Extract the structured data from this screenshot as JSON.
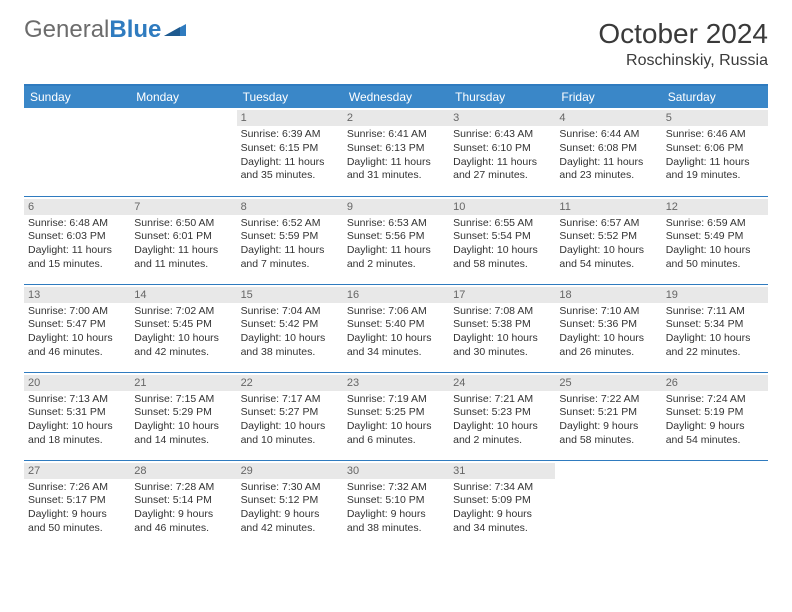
{
  "brand": {
    "part1": "General",
    "part2": "Blue"
  },
  "title": "October 2024",
  "subtitle": "Roschinskiy, Russia",
  "colors": {
    "header_bg": "#3a87c8",
    "rule": "#2f7bbf",
    "dayband": "#e8e8e8",
    "text": "#333333",
    "logo_gray": "#6c6c6c",
    "logo_blue": "#2f7bbf"
  },
  "typography": {
    "title_fontsize": 28,
    "subtitle_fontsize": 16,
    "dow_fontsize": 12,
    "cell_fontsize": 10.5,
    "daynum_fontsize": 11
  },
  "dow": [
    "Sunday",
    "Monday",
    "Tuesday",
    "Wednesday",
    "Thursday",
    "Friday",
    "Saturday"
  ],
  "weeks": [
    [
      null,
      null,
      {
        "d": "1",
        "sr": "6:39 AM",
        "ss": "6:15 PM",
        "dl": "11 hours and 35 minutes."
      },
      {
        "d": "2",
        "sr": "6:41 AM",
        "ss": "6:13 PM",
        "dl": "11 hours and 31 minutes."
      },
      {
        "d": "3",
        "sr": "6:43 AM",
        "ss": "6:10 PM",
        "dl": "11 hours and 27 minutes."
      },
      {
        "d": "4",
        "sr": "6:44 AM",
        "ss": "6:08 PM",
        "dl": "11 hours and 23 minutes."
      },
      {
        "d": "5",
        "sr": "6:46 AM",
        "ss": "6:06 PM",
        "dl": "11 hours and 19 minutes."
      }
    ],
    [
      {
        "d": "6",
        "sr": "6:48 AM",
        "ss": "6:03 PM",
        "dl": "11 hours and 15 minutes."
      },
      {
        "d": "7",
        "sr": "6:50 AM",
        "ss": "6:01 PM",
        "dl": "11 hours and 11 minutes."
      },
      {
        "d": "8",
        "sr": "6:52 AM",
        "ss": "5:59 PM",
        "dl": "11 hours and 7 minutes."
      },
      {
        "d": "9",
        "sr": "6:53 AM",
        "ss": "5:56 PM",
        "dl": "11 hours and 2 minutes."
      },
      {
        "d": "10",
        "sr": "6:55 AM",
        "ss": "5:54 PM",
        "dl": "10 hours and 58 minutes."
      },
      {
        "d": "11",
        "sr": "6:57 AM",
        "ss": "5:52 PM",
        "dl": "10 hours and 54 minutes."
      },
      {
        "d": "12",
        "sr": "6:59 AM",
        "ss": "5:49 PM",
        "dl": "10 hours and 50 minutes."
      }
    ],
    [
      {
        "d": "13",
        "sr": "7:00 AM",
        "ss": "5:47 PM",
        "dl": "10 hours and 46 minutes."
      },
      {
        "d": "14",
        "sr": "7:02 AM",
        "ss": "5:45 PM",
        "dl": "10 hours and 42 minutes."
      },
      {
        "d": "15",
        "sr": "7:04 AM",
        "ss": "5:42 PM",
        "dl": "10 hours and 38 minutes."
      },
      {
        "d": "16",
        "sr": "7:06 AM",
        "ss": "5:40 PM",
        "dl": "10 hours and 34 minutes."
      },
      {
        "d": "17",
        "sr": "7:08 AM",
        "ss": "5:38 PM",
        "dl": "10 hours and 30 minutes."
      },
      {
        "d": "18",
        "sr": "7:10 AM",
        "ss": "5:36 PM",
        "dl": "10 hours and 26 minutes."
      },
      {
        "d": "19",
        "sr": "7:11 AM",
        "ss": "5:34 PM",
        "dl": "10 hours and 22 minutes."
      }
    ],
    [
      {
        "d": "20",
        "sr": "7:13 AM",
        "ss": "5:31 PM",
        "dl": "10 hours and 18 minutes."
      },
      {
        "d": "21",
        "sr": "7:15 AM",
        "ss": "5:29 PM",
        "dl": "10 hours and 14 minutes."
      },
      {
        "d": "22",
        "sr": "7:17 AM",
        "ss": "5:27 PM",
        "dl": "10 hours and 10 minutes."
      },
      {
        "d": "23",
        "sr": "7:19 AM",
        "ss": "5:25 PM",
        "dl": "10 hours and 6 minutes."
      },
      {
        "d": "24",
        "sr": "7:21 AM",
        "ss": "5:23 PM",
        "dl": "10 hours and 2 minutes."
      },
      {
        "d": "25",
        "sr": "7:22 AM",
        "ss": "5:21 PM",
        "dl": "9 hours and 58 minutes."
      },
      {
        "d": "26",
        "sr": "7:24 AM",
        "ss": "5:19 PM",
        "dl": "9 hours and 54 minutes."
      }
    ],
    [
      {
        "d": "27",
        "sr": "7:26 AM",
        "ss": "5:17 PM",
        "dl": "9 hours and 50 minutes."
      },
      {
        "d": "28",
        "sr": "7:28 AM",
        "ss": "5:14 PM",
        "dl": "9 hours and 46 minutes."
      },
      {
        "d": "29",
        "sr": "7:30 AM",
        "ss": "5:12 PM",
        "dl": "9 hours and 42 minutes."
      },
      {
        "d": "30",
        "sr": "7:32 AM",
        "ss": "5:10 PM",
        "dl": "9 hours and 38 minutes."
      },
      {
        "d": "31",
        "sr": "7:34 AM",
        "ss": "5:09 PM",
        "dl": "9 hours and 34 minutes."
      },
      null,
      null
    ]
  ],
  "labels": {
    "sunrise": "Sunrise:",
    "sunset": "Sunset:",
    "daylight": "Daylight:"
  }
}
